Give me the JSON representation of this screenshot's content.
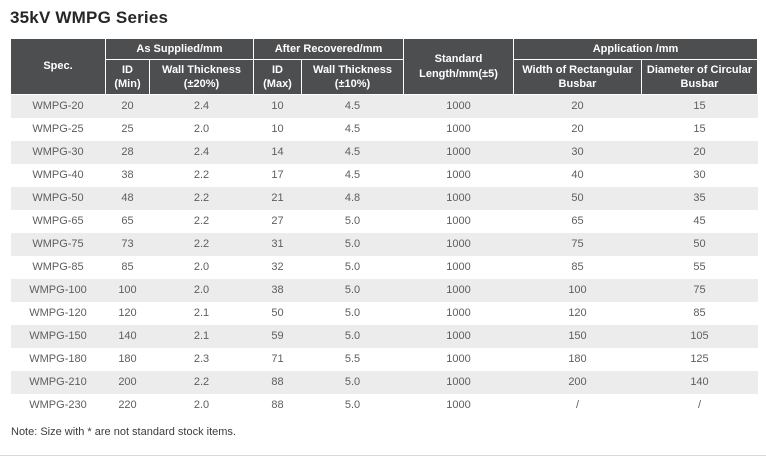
{
  "page": {
    "title": "35kV WMPG Series",
    "note": "Note: Size with * are not standard stock items."
  },
  "colors": {
    "header_background": "#4d4e50",
    "header_text": "#ffffff",
    "row_alternate": "#ececec",
    "body_text": "#5e5e5e"
  },
  "table": {
    "header": {
      "spec": "Spec.",
      "as_supplied": "As Supplied/mm",
      "after_recovered": "After Recovered/mm",
      "standard_length": "Standard Length/mm(±5)",
      "application": "Application /mm",
      "id_min": "ID (Min)",
      "wall_thickness_20": "Wall Thickness (±20%)",
      "id_max": "ID (Max)",
      "wall_thickness_10": "Wall Thickness (±10%)",
      "width_rectangular": "Width of Rectangular Busbar",
      "diameter_circular": "Diameter of Circular Busbar"
    },
    "rows": [
      [
        "WMPG-20",
        "20",
        "2.4",
        "10",
        "4.5",
        "1000",
        "20",
        "15"
      ],
      [
        "WMPG-25",
        "25",
        "2.0",
        "10",
        "4.5",
        "1000",
        "20",
        "15"
      ],
      [
        "WMPG-30",
        "28",
        "2.4",
        "14",
        "4.5",
        "1000",
        "30",
        "20"
      ],
      [
        "WMPG-40",
        "38",
        "2.2",
        "17",
        "4.5",
        "1000",
        "40",
        "30"
      ],
      [
        "WMPG-50",
        "48",
        "2.2",
        "21",
        "4.8",
        "1000",
        "50",
        "35"
      ],
      [
        "WMPG-65",
        "65",
        "2.2",
        "27",
        "5.0",
        "1000",
        "65",
        "45"
      ],
      [
        "WMPG-75",
        "73",
        "2.2",
        "31",
        "5.0",
        "1000",
        "75",
        "50"
      ],
      [
        "WMPG-85",
        "85",
        "2.0",
        "32",
        "5.0",
        "1000",
        "85",
        "55"
      ],
      [
        "WMPG-100",
        "100",
        "2.0",
        "38",
        "5.0",
        "1000",
        "100",
        "75"
      ],
      [
        "WMPG-120",
        "120",
        "2.1",
        "50",
        "5.0",
        "1000",
        "120",
        "85"
      ],
      [
        "WMPG-150",
        "140",
        "2.1",
        "59",
        "5.0",
        "1000",
        "150",
        "105"
      ],
      [
        "WMPG-180",
        "180",
        "2.3",
        "71",
        "5.5",
        "1000",
        "180",
        "125"
      ],
      [
        "WMPG-210",
        "200",
        "2.2",
        "88",
        "5.0",
        "1000",
        "200",
        "140"
      ],
      [
        "WMPG-230",
        "220",
        "2.0",
        "88",
        "5.0",
        "1000",
        "/",
        "/"
      ]
    ]
  }
}
